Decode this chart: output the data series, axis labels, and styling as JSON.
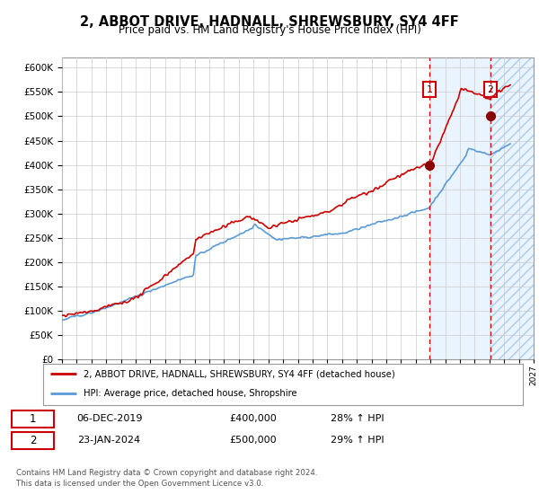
{
  "title": "2, ABBOT DRIVE, HADNALL, SHREWSBURY, SY4 4FF",
  "subtitle": "Price paid vs. HM Land Registry's House Price Index (HPI)",
  "ylim": [
    0,
    620000
  ],
  "yticks": [
    0,
    50000,
    100000,
    150000,
    200000,
    250000,
    300000,
    350000,
    400000,
    450000,
    500000,
    550000,
    600000
  ],
  "xlim_start": 1995,
  "xlim_end": 2027,
  "hpi_color": "#5b9bd5",
  "price_color": "#cc0000",
  "marker1_date": 2019.92,
  "marker1_price": 400000,
  "marker2_date": 2024.07,
  "marker2_price": 500000,
  "legend_label1": "2, ABBOT DRIVE, HADNALL, SHREWSBURY, SY4 4FF (detached house)",
  "legend_label2": "HPI: Average price, detached house, Shropshire",
  "table_row1": [
    "1",
    "06-DEC-2019",
    "£400,000",
    "28% ↑ HPI"
  ],
  "table_row2": [
    "2",
    "23-JAN-2024",
    "£500,000",
    "29% ↑ HPI"
  ],
  "footer": "Contains HM Land Registry data © Crown copyright and database right 2024.\nThis data is licensed under the Open Government Licence v3.0.",
  "bg_light_color": "#ddeeff",
  "bg_hatch_color": "#ddeeff",
  "shade_start": 2020.0,
  "hatch_start": 2024.07
}
